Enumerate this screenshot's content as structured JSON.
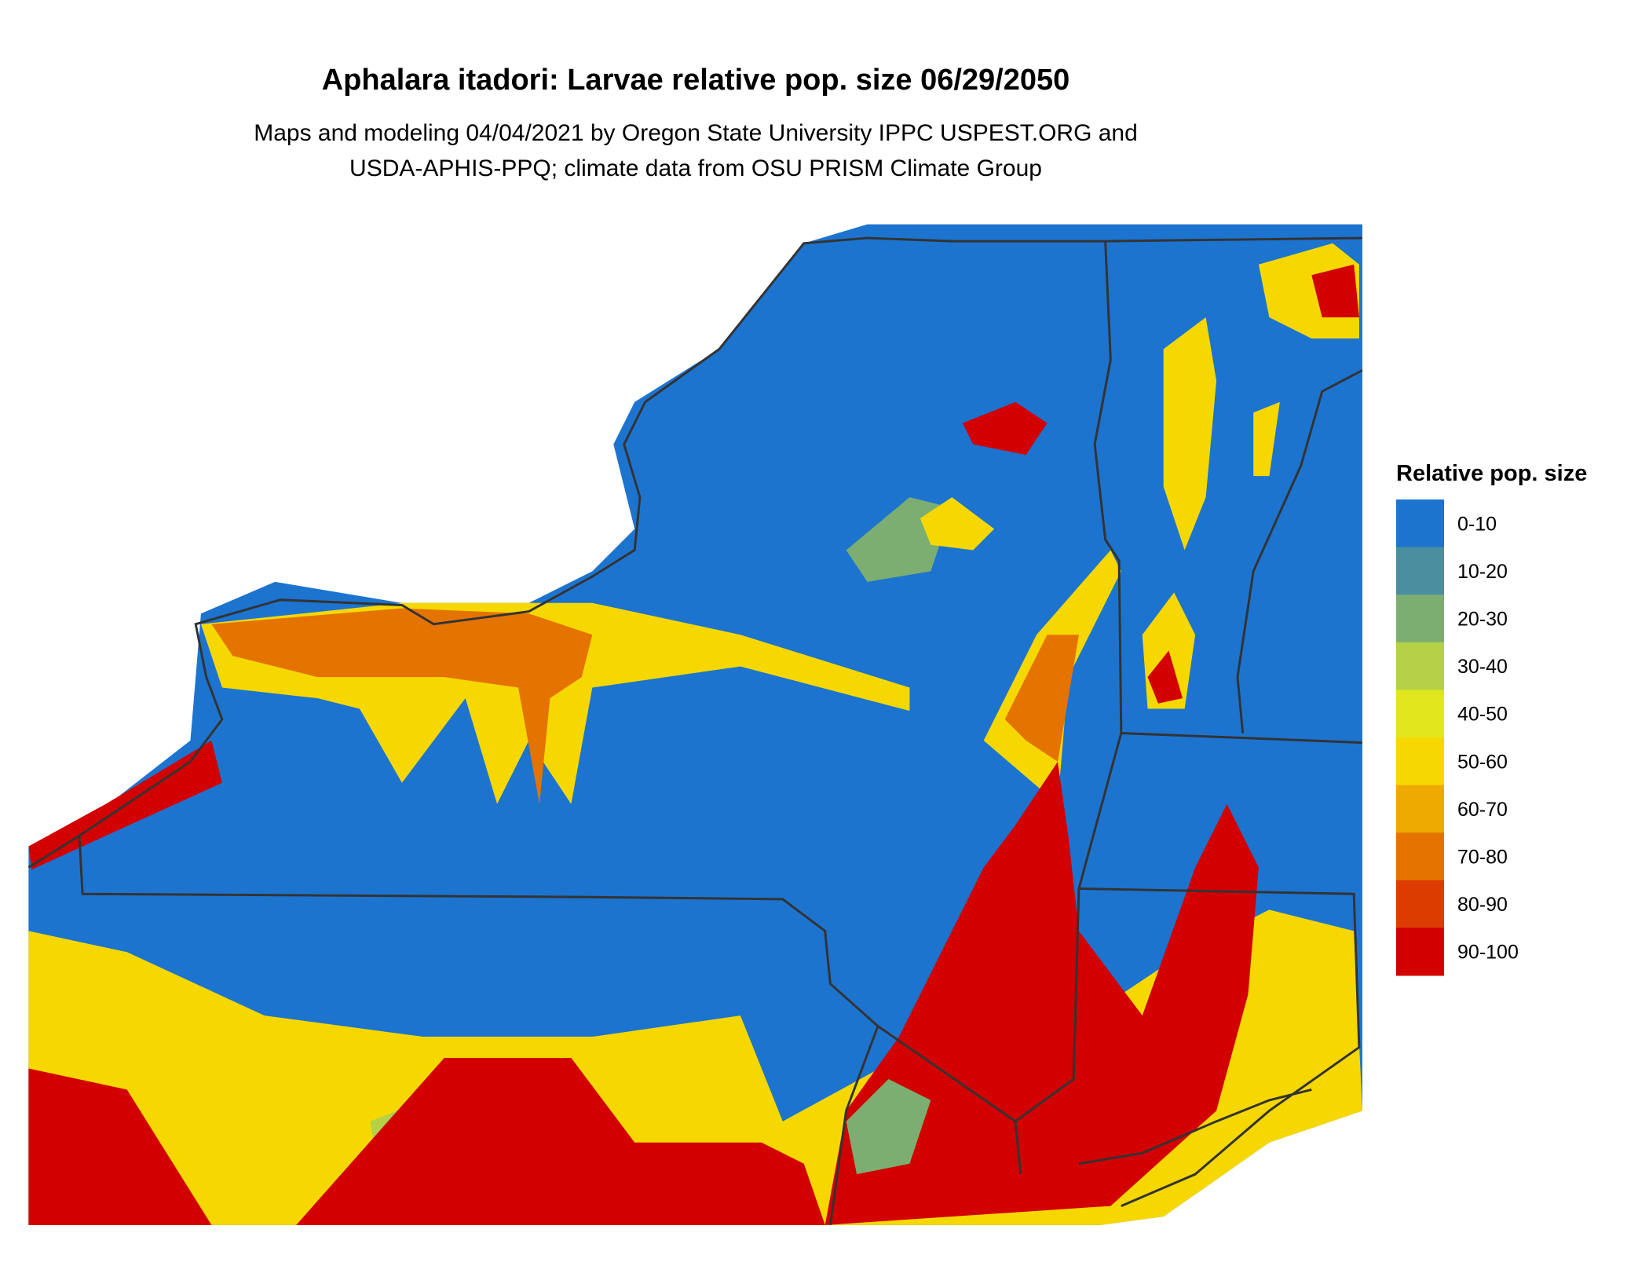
{
  "title": "Aphalara itadori: Larvae relative pop. size 06/29/2050",
  "subtitle": [
    "Maps and modeling 04/04/2021 by Oregon State University IPPC USPEST.ORG and",
    "USDA-APHIS-PPQ; climate data from OSU PRISM Climate Group"
  ],
  "legend": {
    "title": "Relative pop. size",
    "items": [
      {
        "label": "0-10",
        "color": "#1c74cf"
      },
      {
        "label": "10-20",
        "color": "#4a8e9f"
      },
      {
        "label": "20-30",
        "color": "#7cae72"
      },
      {
        "label": "30-40",
        "color": "#b4d147"
      },
      {
        "label": "40-50",
        "color": "#e2e61d"
      },
      {
        "label": "50-60",
        "color": "#f6d800"
      },
      {
        "label": "60-70",
        "color": "#eeaa00"
      },
      {
        "label": "70-80",
        "color": "#e47300"
      },
      {
        "label": "80-90",
        "color": "#dc3c00"
      },
      {
        "label": "90-100",
        "color": "#d20000"
      }
    ]
  }
}
